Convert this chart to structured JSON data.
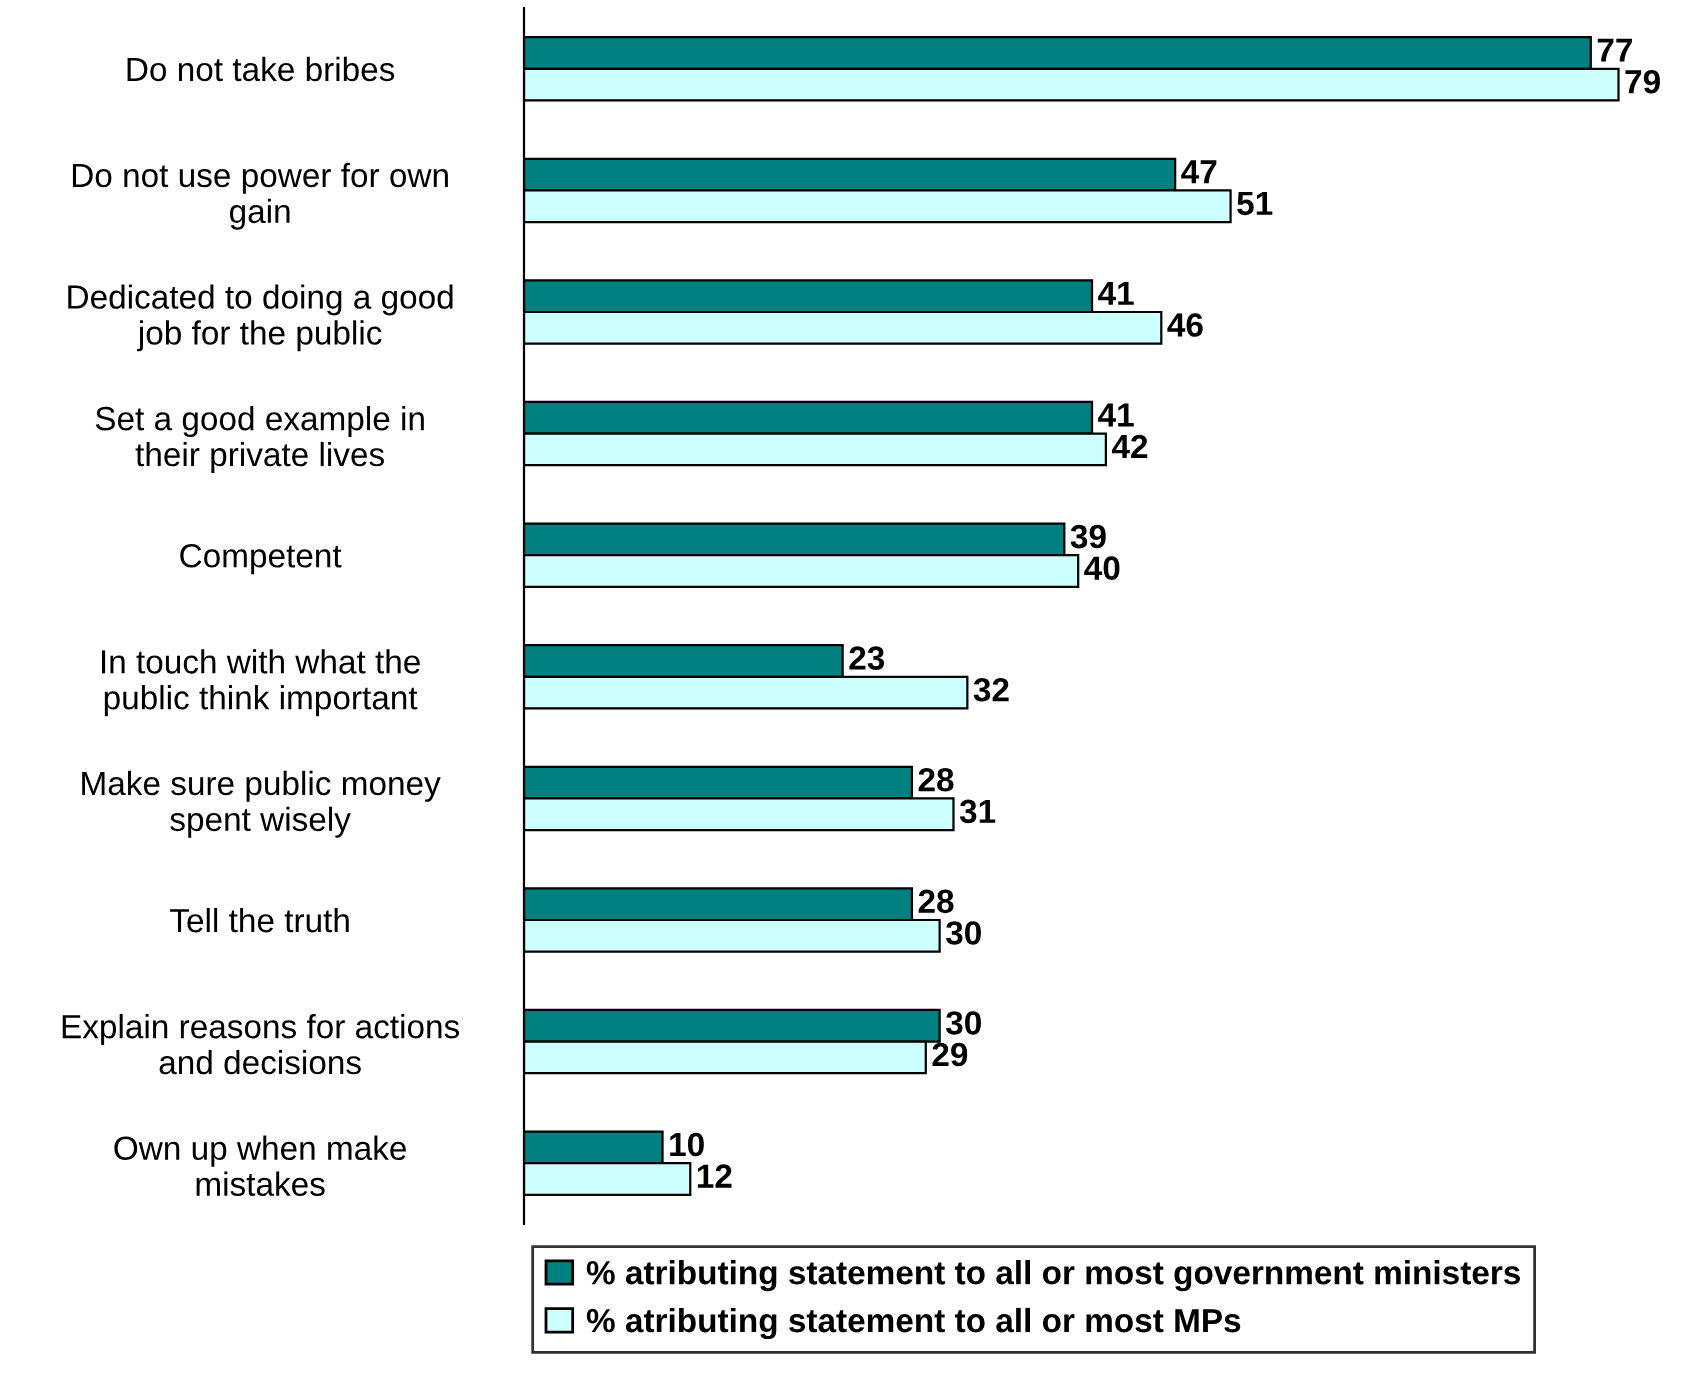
{
  "chart_data": {
    "type": "bar",
    "orientation": "horizontal",
    "data_labels": true,
    "legend": "bottom",
    "grid": false,
    "categories": [
      "Do not take bribes",
      "Do not use power for own\ngain",
      "Dedicated to doing a good\njob for the public",
      "Set a good example in\ntheir private lives",
      "Competent",
      "In touch with what the\npublic think important",
      "Make sure public money\nspent wisely",
      "Tell the truth",
      "Explain reasons for actions\nand decisions",
      "Own up when make\nmistakes"
    ],
    "series": [
      {
        "name": "% atributing statement to all or most government ministers",
        "color": "#008080",
        "values": [
          77,
          47,
          41,
          41,
          39,
          23,
          28,
          28,
          30,
          10
        ]
      },
      {
        "name": "% atributing statement to all or most MPs",
        "color": "#ccffff",
        "values": [
          79,
          51,
          46,
          42,
          40,
          32,
          31,
          30,
          29,
          12
        ]
      }
    ]
  }
}
